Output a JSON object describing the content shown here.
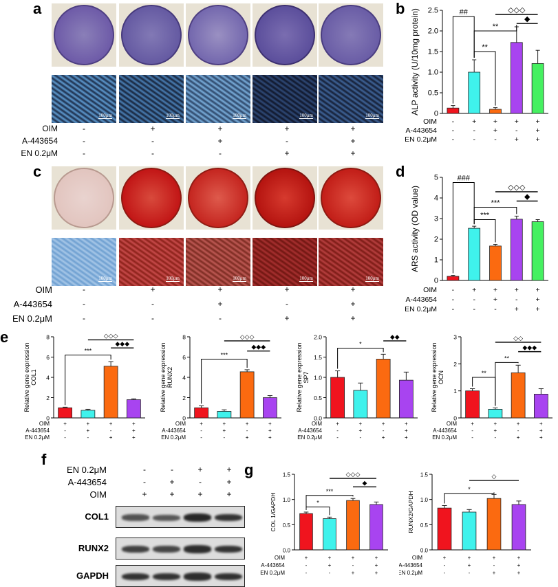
{
  "panels": {
    "a": "a",
    "b": "b",
    "c": "c",
    "d": "d",
    "e": "e",
    "f": "f",
    "g": "g"
  },
  "treatments": {
    "rows": [
      "OIM",
      "A-443654",
      "EN 0.2μM"
    ],
    "signs": [
      [
        "-",
        "+",
        "+",
        "+",
        "+"
      ],
      [
        "-",
        "-",
        "+",
        "-",
        "+"
      ],
      [
        "-",
        "-",
        "-",
        "+",
        "+"
      ]
    ],
    "signs4": [
      [
        "+",
        "+",
        "+",
        "+"
      ],
      [
        "-",
        "+",
        "-",
        "+"
      ],
      [
        "-",
        "-",
        "+",
        "+"
      ]
    ]
  },
  "scalebar": "100μm",
  "colors": {
    "red": "#f0141e",
    "cyan": "#3ff2ec",
    "orange": "#fb6a10",
    "purple": "#a844f0",
    "green": "#45f060",
    "alp_stain": "#6e5ba8",
    "ars_stain": "#c21616"
  },
  "blot": {
    "rows": [
      "EN 0.2μM",
      "A-443654",
      "OIM"
    ],
    "signs": [
      [
        "-",
        "-",
        "+",
        "+"
      ],
      [
        "-",
        "+",
        "-",
        "+"
      ],
      [
        "+",
        "+",
        "+",
        "+"
      ]
    ],
    "bands": [
      "COL1",
      "RUNX2",
      "GAPDH"
    ],
    "intensity": {
      "COL1": [
        0.55,
        0.5,
        0.9,
        0.8
      ],
      "RUNX2": [
        0.7,
        0.65,
        0.85,
        0.8
      ],
      "GAPDH": [
        0.8,
        0.8,
        0.85,
        0.82
      ]
    }
  },
  "chart_data": [
    {
      "id": "b",
      "type": "bar",
      "ylabel": "ALP activity (U/10mg protein)",
      "ylim": [
        0,
        2.5
      ],
      "yticks": [
        0,
        0.5,
        1.0,
        1.5,
        2.0,
        2.5
      ],
      "yticklabels": [
        "0",
        "0.5",
        "1.0",
        "1.5",
        "2.0",
        "2.5"
      ],
      "values": [
        0.13,
        1.0,
        0.1,
        1.72,
        1.21
      ],
      "errors": [
        0.06,
        0.3,
        0.04,
        0.38,
        0.32
      ],
      "colors": [
        "#f0141e",
        "#3ff2ec",
        "#fb6a10",
        "#a844f0",
        "#45f060"
      ],
      "signs": [
        [
          "-",
          "+",
          "+",
          "+",
          "+"
        ],
        [
          "-",
          "-",
          "+",
          "-",
          "+"
        ],
        [
          "-",
          "-",
          "-",
          "+",
          "+"
        ]
      ],
      "annotations": [
        {
          "from": 0,
          "to": 1,
          "label": "##",
          "y": 2.35,
          "style": "bracket"
        },
        {
          "from": 1,
          "to": 3,
          "label": "**",
          "y": 2.0,
          "style": "bracket"
        },
        {
          "from": 1,
          "to": 2,
          "label": "**",
          "y": 1.5,
          "style": "bracket"
        },
        {
          "from": 2,
          "to": 4,
          "label": "◇◇◇",
          "y": 2.4,
          "style": "line"
        },
        {
          "from": 3,
          "to": 4,
          "label": "◆",
          "y": 2.18,
          "style": "line"
        }
      ]
    },
    {
      "id": "d",
      "type": "bar",
      "ylabel": "ARS activity (OD value)",
      "ylim": [
        0,
        5
      ],
      "yticks": [
        0,
        1,
        2,
        3,
        4,
        5
      ],
      "yticklabels": [
        "0",
        "1",
        "2",
        "3",
        "4",
        "5"
      ],
      "values": [
        0.2,
        2.53,
        1.67,
        2.97,
        2.85
      ],
      "errors": [
        0.05,
        0.1,
        0.08,
        0.15,
        0.1
      ],
      "colors": [
        "#f0141e",
        "#3ff2ec",
        "#fb6a10",
        "#a844f0",
        "#45f060"
      ],
      "signs": [
        [
          "-",
          "+",
          "+",
          "+",
          "+"
        ],
        [
          "-",
          "-",
          "+",
          "-",
          "+"
        ],
        [
          "-",
          "-",
          "-",
          "+",
          "+"
        ]
      ],
      "annotations": [
        {
          "from": 0,
          "to": 1,
          "label": "###",
          "y": 4.75,
          "style": "bracket"
        },
        {
          "from": 1,
          "to": 3,
          "label": "***",
          "y": 3.55,
          "style": "bracket"
        },
        {
          "from": 1,
          "to": 2,
          "label": "***",
          "y": 2.95,
          "style": "bracket"
        },
        {
          "from": 2,
          "to": 4,
          "label": "◇◇◇",
          "y": 4.3,
          "style": "line"
        },
        {
          "from": 3,
          "to": 4,
          "label": "◆",
          "y": 3.85,
          "style": "line"
        }
      ]
    },
    {
      "id": "e1",
      "type": "bar",
      "ylabel": "Relative gene expression COL1",
      "ylim": [
        0,
        8
      ],
      "yticks": [
        0,
        2,
        4,
        6,
        8
      ],
      "yticklabels": [
        "0",
        "2",
        "4",
        "6",
        "8"
      ],
      "values": [
        1.0,
        0.75,
        5.1,
        1.8
      ],
      "errors": [
        0.06,
        0.1,
        0.45,
        0.08
      ],
      "colors": [
        "#f0141e",
        "#3ff2ec",
        "#fb6a10",
        "#a844f0"
      ],
      "signs": [
        [
          "+",
          "+",
          "+",
          "+"
        ],
        [
          "-",
          "+",
          "-",
          "+"
        ],
        [
          "-",
          "-",
          "+",
          "+"
        ]
      ],
      "annotations": [
        {
          "from": 0,
          "to": 2,
          "label": "***",
          "y": 6.2,
          "style": "bracket"
        },
        {
          "from": 1,
          "to": 3,
          "label": "◇◇◇",
          "y": 7.7,
          "style": "line"
        },
        {
          "from": 2,
          "to": 3,
          "label": "◆◆◆",
          "y": 6.9,
          "style": "line"
        }
      ]
    },
    {
      "id": "e2",
      "type": "bar",
      "ylabel": "Relative gene expression RUNX2",
      "ylim": [
        0,
        8
      ],
      "yticks": [
        0,
        2,
        4,
        6,
        8
      ],
      "yticklabels": [
        "0",
        "2",
        "4",
        "6",
        "8"
      ],
      "values": [
        1.0,
        0.65,
        4.55,
        2.0
      ],
      "errors": [
        0.2,
        0.15,
        0.2,
        0.2
      ],
      "colors": [
        "#f0141e",
        "#3ff2ec",
        "#fb6a10",
        "#a844f0"
      ],
      "signs": [
        [
          "+",
          "+",
          "+",
          "+"
        ],
        [
          "-",
          "+",
          "-",
          "+"
        ],
        [
          "-",
          "-",
          "+",
          "+"
        ]
      ],
      "annotations": [
        {
          "from": 0,
          "to": 2,
          "label": "***",
          "y": 5.8,
          "style": "bracket"
        },
        {
          "from": 1,
          "to": 3,
          "label": "◇◇◇",
          "y": 7.6,
          "style": "line"
        },
        {
          "from": 2,
          "to": 3,
          "label": "◆◆◆",
          "y": 6.6,
          "style": "line"
        }
      ]
    },
    {
      "id": "e3",
      "type": "bar",
      "ylabel": "Relative gene expression SP7",
      "ylim": [
        0,
        2
      ],
      "yticks": [
        0.0,
        0.5,
        1.0,
        1.5,
        2.0
      ],
      "yticklabels": [
        "0.0",
        "0.5",
        "1.0",
        "1.5",
        "2.0"
      ],
      "values": [
        1.0,
        0.68,
        1.45,
        0.93
      ],
      "errors": [
        0.16,
        0.18,
        0.12,
        0.2
      ],
      "colors": [
        "#f0141e",
        "#3ff2ec",
        "#fb6a10",
        "#a844f0"
      ],
      "signs": [
        [
          "+",
          "+",
          "+",
          "+"
        ],
        [
          "-",
          "+",
          "-",
          "+"
        ],
        [
          "-",
          "-",
          "+",
          "+"
        ]
      ],
      "annotations": [
        {
          "from": 0,
          "to": 2,
          "label": "*",
          "y": 1.72,
          "style": "bracket"
        },
        {
          "from": 2,
          "to": 3,
          "label": "◆◆",
          "y": 1.9,
          "style": "line"
        }
      ]
    },
    {
      "id": "e4",
      "type": "bar",
      "ylabel": "Relative gene expression OCN",
      "ylim": [
        0,
        3
      ],
      "yticks": [
        0,
        1,
        2,
        3
      ],
      "yticklabels": [
        "0",
        "1",
        "2",
        "3"
      ],
      "values": [
        1.0,
        0.32,
        1.67,
        0.88
      ],
      "errors": [
        0.08,
        0.05,
        0.28,
        0.2
      ],
      "colors": [
        "#f0141e",
        "#3ff2ec",
        "#fb6a10",
        "#a844f0"
      ],
      "signs": [
        [
          "+",
          "+",
          "+",
          "+"
        ],
        [
          "-",
          "+",
          "-",
          "+"
        ],
        [
          "-",
          "-",
          "+",
          "+"
        ]
      ],
      "annotations": [
        {
          "from": 0,
          "to": 1,
          "label": "**",
          "y": 1.5,
          "style": "bracket"
        },
        {
          "from": 1,
          "to": 2,
          "label": "**",
          "y": 2.05,
          "style": "bracket"
        },
        {
          "from": 1,
          "to": 3,
          "label": "◇◇",
          "y": 2.8,
          "style": "line"
        },
        {
          "from": 2,
          "to": 3,
          "label": "◆◆◆",
          "y": 2.45,
          "style": "line"
        }
      ]
    },
    {
      "id": "g1",
      "type": "bar",
      "ylabel": "COL 1/GAPDH",
      "ylim": [
        0,
        1.5
      ],
      "yticks": [
        0.0,
        0.5,
        1.0,
        1.5
      ],
      "yticklabels": [
        "0.0",
        "0.5",
        "1.0",
        "1.5"
      ],
      "values": [
        0.72,
        0.62,
        0.98,
        0.9
      ],
      "errors": [
        0.03,
        0.03,
        0.04,
        0.05
      ],
      "colors": [
        "#f0141e",
        "#3ff2ec",
        "#fb6a10",
        "#a844f0"
      ],
      "signs": [
        [
          "+",
          "+",
          "+",
          "+"
        ],
        [
          "-",
          "+",
          "-",
          "+"
        ],
        [
          "-",
          "-",
          "+",
          "+"
        ]
      ],
      "annotations": [
        {
          "from": 0,
          "to": 1,
          "label": "*",
          "y": 0.85,
          "style": "bracket"
        },
        {
          "from": 0,
          "to": 2,
          "label": "***",
          "y": 1.08,
          "style": "bracket"
        },
        {
          "from": 1,
          "to": 3,
          "label": "◇◇◇",
          "y": 1.42,
          "style": "line"
        },
        {
          "from": 2,
          "to": 3,
          "label": "◆",
          "y": 1.25,
          "style": "line"
        }
      ]
    },
    {
      "id": "g2",
      "type": "bar",
      "ylabel": "RUNX2/GAPDH",
      "ylim": [
        0,
        1.5
      ],
      "yticks": [
        0.0,
        0.5,
        1.0,
        1.5
      ],
      "yticklabels": [
        "0.0",
        "0.5",
        "1.0",
        "1.5"
      ],
      "values": [
        0.83,
        0.75,
        1.02,
        0.9
      ],
      "errors": [
        0.05,
        0.05,
        0.08,
        0.07
      ],
      "colors": [
        "#f0141e",
        "#3ff2ec",
        "#fb6a10",
        "#a844f0"
      ],
      "signs": [
        [
          "+",
          "+",
          "+",
          "+"
        ],
        [
          "-",
          "+",
          "-",
          "+"
        ],
        [
          "-",
          "-",
          "+",
          "+"
        ]
      ],
      "annotations": [
        {
          "from": 0,
          "to": 2,
          "label": "*",
          "y": 1.12,
          "style": "bracket"
        },
        {
          "from": 1,
          "to": 3,
          "label": "◇",
          "y": 1.38,
          "style": "line"
        }
      ]
    }
  ]
}
